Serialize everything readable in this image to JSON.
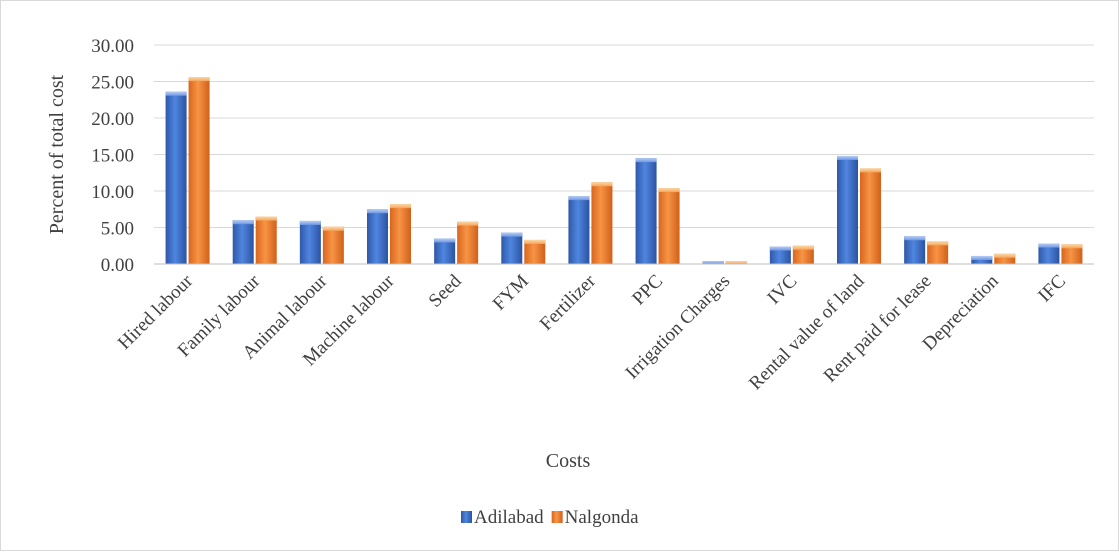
{
  "chart_data": {
    "type": "bar",
    "xlabel": "Costs",
    "ylabel": "Percent of total cost",
    "ylim": [
      0,
      30
    ],
    "yticks": [
      "0.00",
      "5.00",
      "10.00",
      "15.00",
      "20.00",
      "25.00",
      "30.00"
    ],
    "grid": true,
    "legend_position": "bottom",
    "categories": [
      "Hired labour",
      "Family labour",
      "Animal labour",
      "Machine labour",
      "Seed",
      "FYM",
      "Fertilizer",
      "PPC",
      "Irrigation Charges",
      "IVC",
      "Rental value of land",
      "Rent paid for lease",
      "Depreciation",
      "IFC"
    ],
    "series": [
      {
        "name": "Adilabad",
        "color": "#3c6ecb",
        "values": [
          23.6,
          6.0,
          5.9,
          7.5,
          3.5,
          4.3,
          9.3,
          14.5,
          0.4,
          2.4,
          14.8,
          3.8,
          1.1,
          2.8
        ]
      },
      {
        "name": "Nalgonda",
        "color": "#ee7b2c",
        "values": [
          25.6,
          6.5,
          5.1,
          8.2,
          5.8,
          3.3,
          11.2,
          10.4,
          0.4,
          2.5,
          13.1,
          3.1,
          1.4,
          2.7
        ]
      }
    ]
  }
}
